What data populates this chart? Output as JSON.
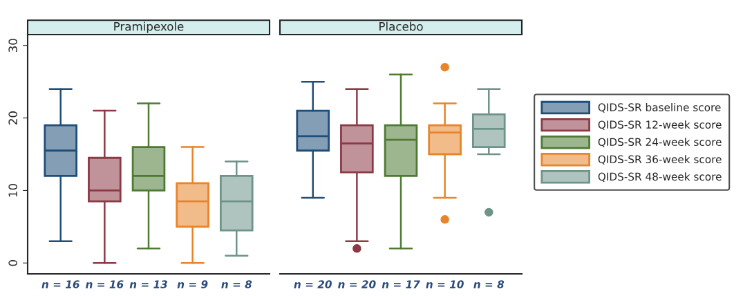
{
  "chart_data": [
    {
      "type": "box",
      "title": "Pramipexole",
      "categories": [
        "n = 16",
        "n = 16",
        "n = 13",
        "n = 9",
        "n = 8"
      ],
      "ylim": [
        -1.5,
        31.5
      ],
      "yticks": [
        0,
        10,
        20,
        30
      ],
      "grid": false,
      "legend": false,
      "series": [
        {
          "color": "#1f4e79",
          "boxes": [
            {
              "low": 3,
              "q1": 12,
              "median": 15.5,
              "q3": 19,
              "high": 24
            },
            null,
            null,
            null,
            null
          ]
        },
        {
          "color": "#8b3a45",
          "boxes": [
            null,
            {
              "low": 0,
              "q1": 8.5,
              "median": 10,
              "q3": 14.5,
              "high": 21
            },
            null,
            null,
            null
          ]
        },
        {
          "color": "#4e7a34",
          "boxes": [
            null,
            null,
            {
              "low": 2,
              "q1": 10,
              "median": 12,
              "q3": 16,
              "high": 22
            },
            null,
            null
          ]
        },
        {
          "color": "#e8842a",
          "boxes": [
            null,
            null,
            null,
            {
              "low": 0,
              "q1": 5,
              "median": 8.5,
              "q3": 11,
              "high": 16
            },
            null
          ]
        },
        {
          "color": "#6e948a",
          "boxes": [
            null,
            null,
            null,
            null,
            {
              "low": 1,
              "q1": 4.5,
              "median": 8.5,
              "q3": 12,
              "high": 14
            }
          ]
        }
      ]
    },
    {
      "type": "box",
      "title": "Placebo",
      "categories": [
        "n = 20",
        "n = 20",
        "n = 17",
        "n = 10",
        "n = 8"
      ],
      "ylim": [
        -1.5,
        31.5
      ],
      "yticks": [
        0,
        10,
        20,
        30
      ],
      "tick_labels": "x",
      "grid": false,
      "legend": "right",
      "series": [
        {
          "name": "QIDS-SR baseline score",
          "color": "#1f4e79",
          "boxes": [
            {
              "low": 9,
              "q1": 15.5,
              "median": 17.5,
              "q3": 21,
              "high": 25
            },
            null,
            null,
            null,
            null
          ]
        },
        {
          "name": "QIDS-SR 12-week score",
          "color": "#8b3a45",
          "boxes": [
            null,
            {
              "low": 3,
              "q1": 12.5,
              "median": 16.5,
              "q3": 19,
              "high": 24,
              "outliers": [
                2
              ]
            },
            null,
            null,
            null
          ]
        },
        {
          "name": "QIDS-SR 24-week score",
          "color": "#4e7a34",
          "boxes": [
            null,
            null,
            {
              "low": 2,
              "q1": 12,
              "median": 17,
              "q3": 19,
              "high": 26
            },
            null,
            null
          ]
        },
        {
          "name": "QIDS-SR 36-week score",
          "color": "#e8842a",
          "boxes": [
            null,
            null,
            null,
            {
              "low": 9,
              "q1": 15,
              "median": 18,
              "q3": 19,
              "high": 22,
              "outliers": [
                27,
                6
              ]
            },
            null
          ]
        },
        {
          "name": "QIDS-SR 48-week score",
          "color": "#6e948a",
          "boxes": [
            null,
            null,
            null,
            null,
            {
              "low": 15,
              "q1": 16,
              "median": 18.5,
              "q3": 20.5,
              "high": 24,
              "outliers": [
                7
              ]
            }
          ]
        }
      ]
    }
  ]
}
